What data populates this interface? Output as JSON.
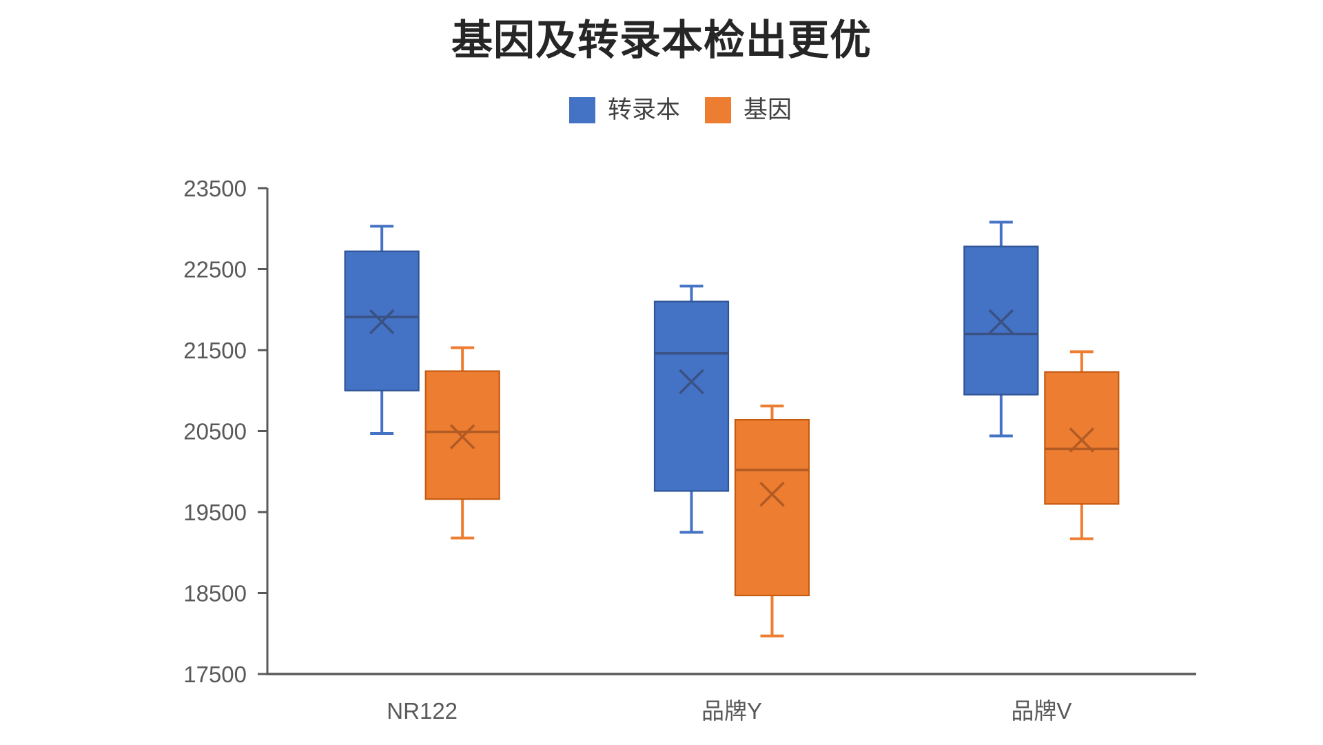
{
  "title": "基因及转录本检出更优",
  "legend": {
    "items": [
      {
        "label": "转录本",
        "color": "#4472C4"
      },
      {
        "label": "基因",
        "color": "#ED7D31"
      }
    ]
  },
  "chart_data": {
    "type": "boxplot",
    "title": "基因及转录本检出更优",
    "categories": [
      "NR122",
      "品牌Y",
      "品牌V"
    ],
    "y_axis": {
      "min": 17500,
      "max": 23500,
      "step": 1000,
      "tick_labels": [
        "23500",
        "22500",
        "21500",
        "20500",
        "19500",
        "18500",
        "17500"
      ]
    },
    "grid": false,
    "legend_position": "top",
    "series": [
      {
        "name": "转录本",
        "fill": "#4472C4",
        "stroke": "#2F5597",
        "detail_color": "#3A5183",
        "boxes": [
          {
            "category": "NR122",
            "min": 20470,
            "q1": 21000,
            "median": 21910,
            "mean": 21850,
            "q3": 22720,
            "max": 23030
          },
          {
            "category": "品牌Y",
            "min": 19250,
            "q1": 19760,
            "median": 21460,
            "mean": 21110,
            "q3": 22100,
            "max": 22290
          },
          {
            "category": "品牌V",
            "min": 20440,
            "q1": 20950,
            "median": 21700,
            "mean": 21850,
            "q3": 22780,
            "max": 23080
          }
        ]
      },
      {
        "name": "基因",
        "fill": "#ED7D31",
        "stroke": "#C55A11",
        "detail_color": "#B15A23",
        "boxes": [
          {
            "category": "NR122",
            "min": 19180,
            "q1": 19660,
            "median": 20490,
            "mean": 20430,
            "q3": 21240,
            "max": 21530
          },
          {
            "category": "品牌Y",
            "min": 17970,
            "q1": 18470,
            "median": 20020,
            "mean": 19720,
            "q3": 20640,
            "max": 20810
          },
          {
            "category": "品牌V",
            "min": 19170,
            "q1": 19600,
            "median": 20280,
            "mean": 20390,
            "q3": 21230,
            "max": 21480
          }
        ]
      }
    ]
  },
  "colors": {
    "background": "#FFFFFF",
    "title_text": "#262626",
    "legend_text": "#404040",
    "axis": "#595959",
    "tick_text": "#595959"
  }
}
